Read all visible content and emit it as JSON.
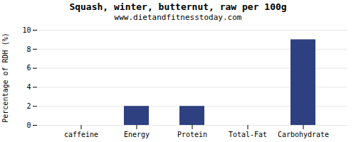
{
  "chart_data": {
    "type": "bar",
    "title": "Squash, winter, butternut, raw per 100g",
    "subtitle": "www.dietandfitnesstoday.com",
    "categories": [
      "caffeine",
      "Energy",
      "Protein",
      "Total-Fat",
      "Carbohydrate"
    ],
    "values": [
      0,
      2,
      2,
      0,
      9
    ],
    "color": "#2e4080",
    "ylabel": "Percentage of RDH (%)",
    "ylim": [
      0,
      10
    ],
    "yticks": [
      0,
      2,
      4,
      6,
      8,
      10
    ],
    "grid": true
  }
}
